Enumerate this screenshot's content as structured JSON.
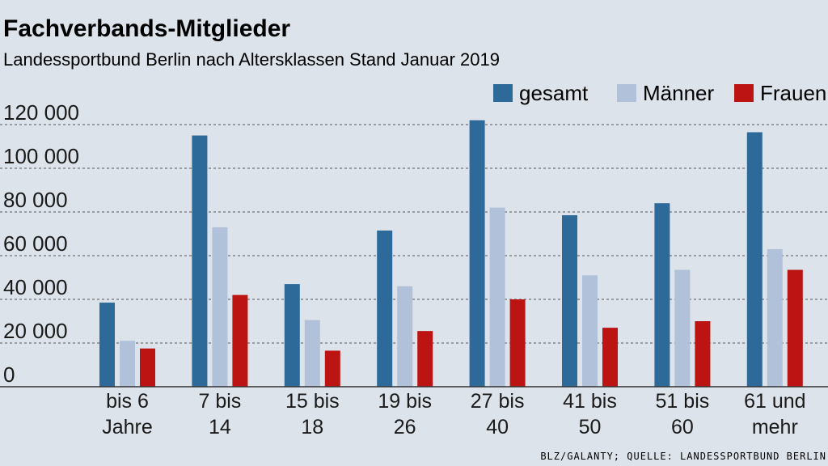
{
  "colors": {
    "background": "#dde3ea",
    "gesamt": "#2e6a99",
    "maenner": "#b0c1d9",
    "frauen": "#bb1413",
    "grid": "#555555",
    "text": "#1a1a1a"
  },
  "source": "BLZ/GALANTY; QUELLE: LANDESSPORTBUND BERLIN",
  "chart_data": {
    "type": "bar",
    "title": "Fachverbands-Mitglieder",
    "subtitle": "Landessportbund Berlin nach Altersklassen Stand Januar 2019",
    "xlabel": "",
    "ylabel": "",
    "ylim": [
      0,
      120000
    ],
    "yticks": [
      0,
      20000,
      40000,
      60000,
      80000,
      100000,
      120000
    ],
    "ytick_labels": [
      "0",
      "20 000",
      "40 000",
      "60 000",
      "80 000",
      "100 000",
      "120 000"
    ],
    "grid": true,
    "legend_position": "top-right",
    "categories": [
      [
        "bis 6",
        "Jahre"
      ],
      [
        "7 bis",
        "14"
      ],
      [
        "15 bis",
        "18"
      ],
      [
        "19 bis",
        "26"
      ],
      [
        "27 bis",
        "40"
      ],
      [
        "41 bis",
        "50"
      ],
      [
        "51 bis",
        "60"
      ],
      [
        "61 und",
        "mehr"
      ]
    ],
    "series": [
      {
        "name": "gesamt",
        "color": "#2e6a99",
        "values": [
          38500,
          115000,
          47000,
          71500,
          122000,
          78500,
          84000,
          116500
        ]
      },
      {
        "name": "Männer",
        "color": "#b0c1d9",
        "values": [
          21000,
          73000,
          30500,
          46000,
          82000,
          51000,
          53500,
          63000
        ]
      },
      {
        "name": "Frauen",
        "color": "#bb1413",
        "values": [
          17500,
          42000,
          16500,
          25500,
          40000,
          27000,
          30000,
          53500
        ]
      }
    ]
  }
}
